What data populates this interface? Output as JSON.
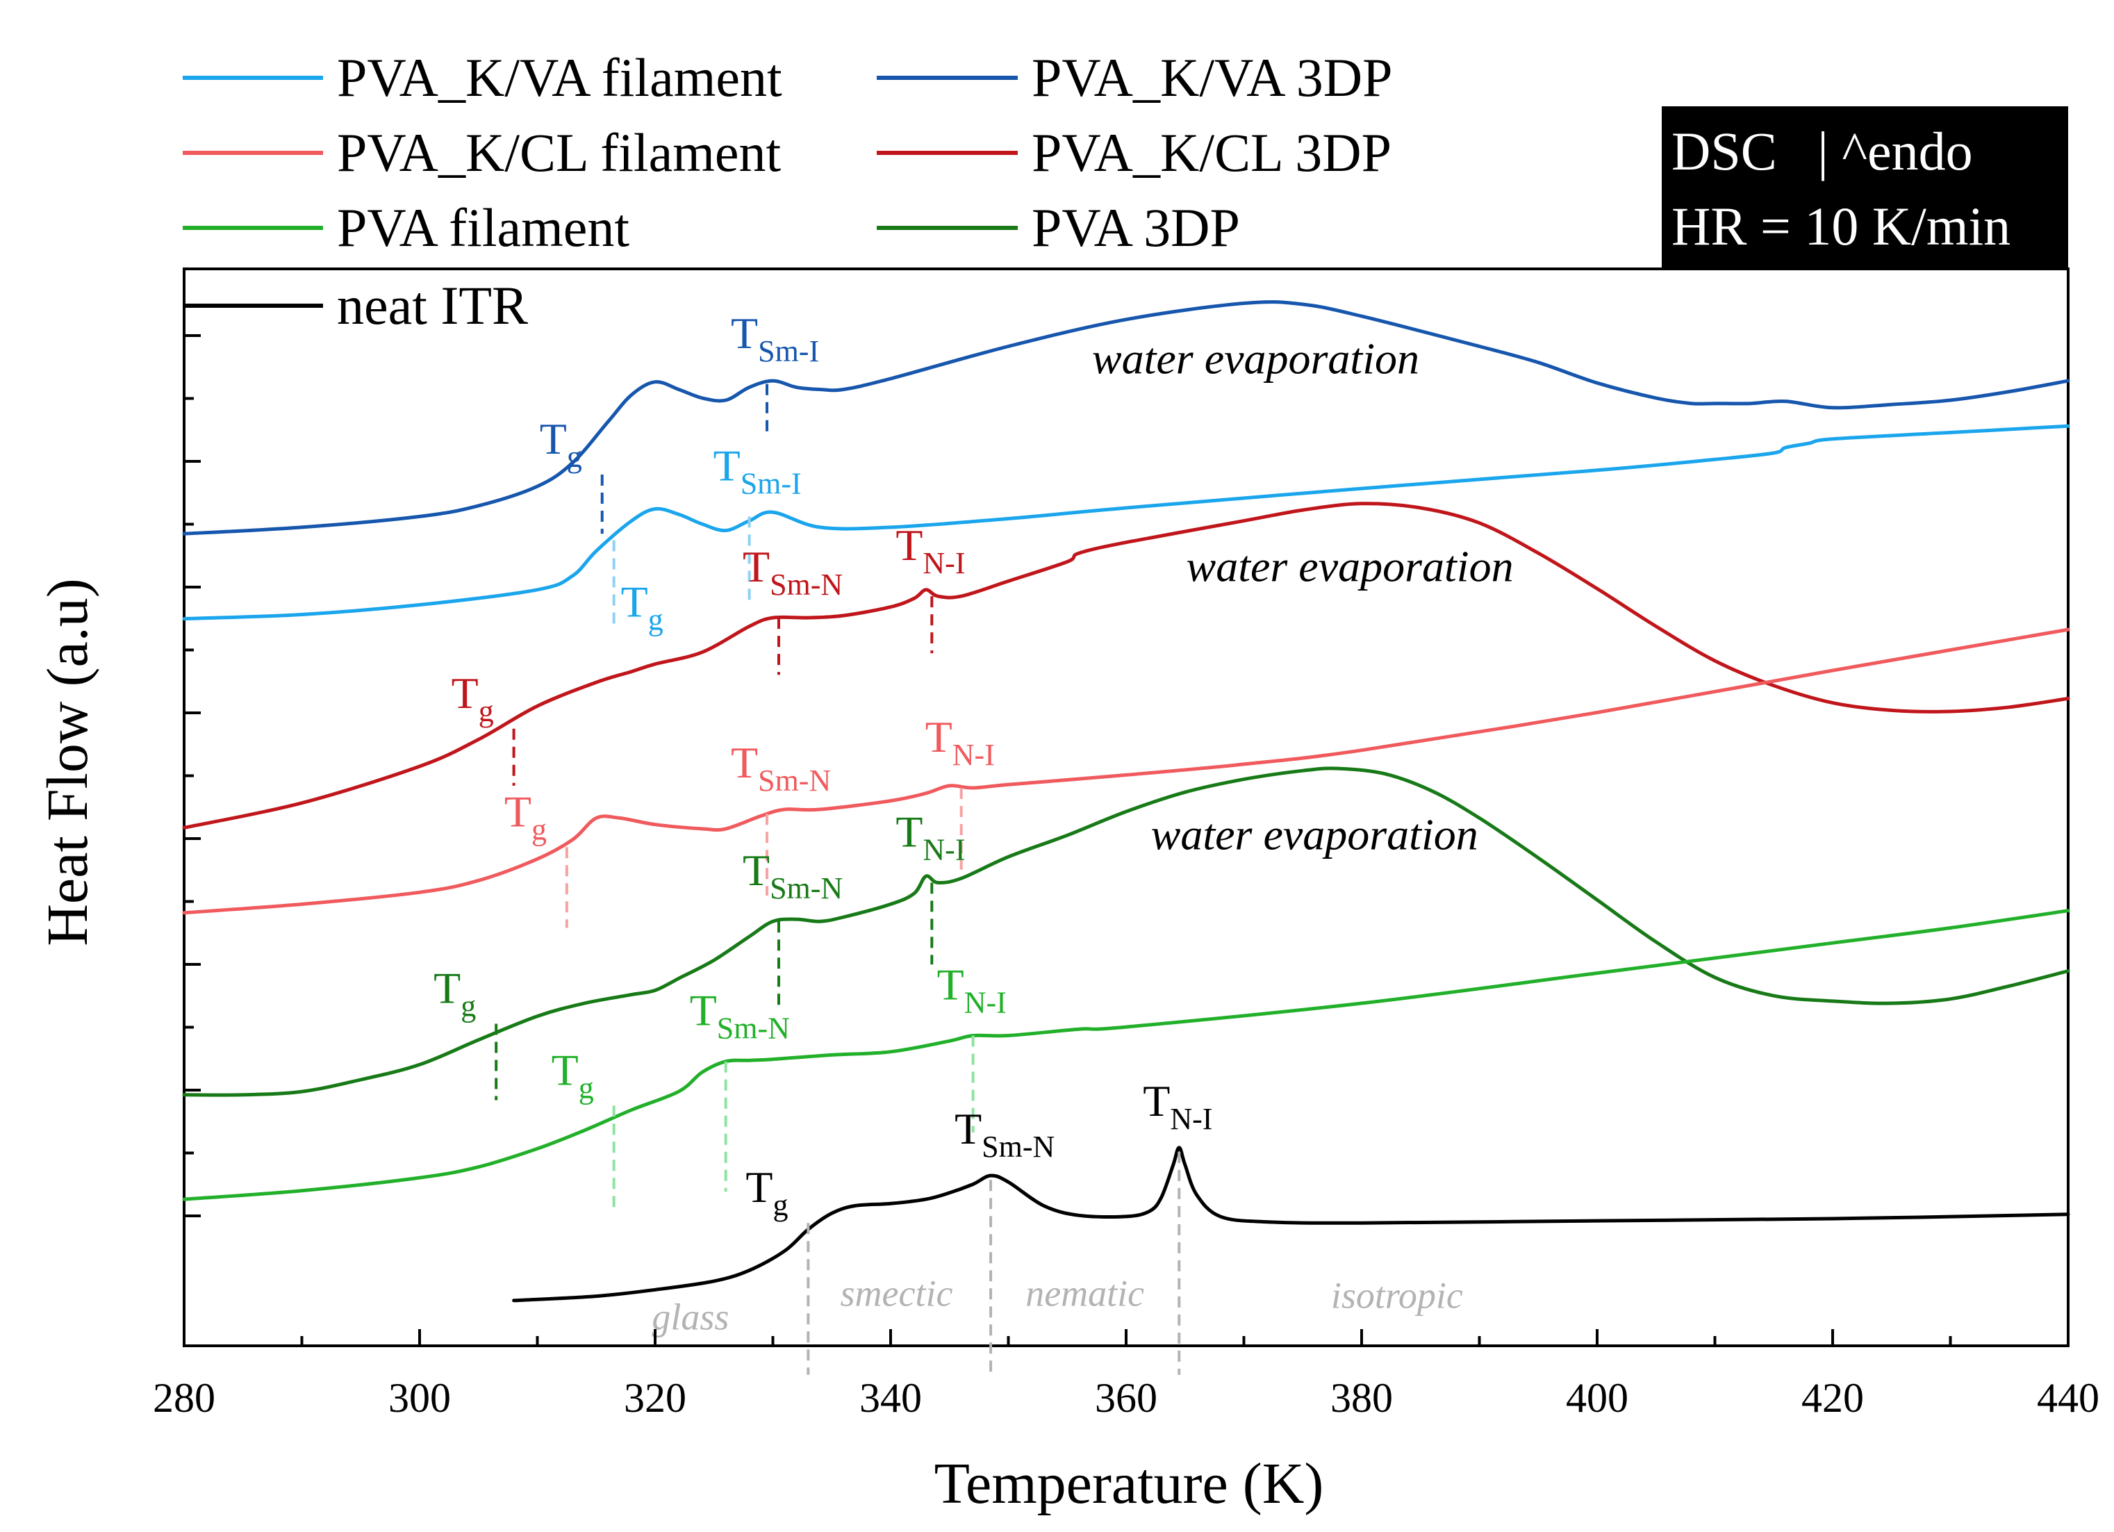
{
  "chart_data": {
    "type": "line",
    "title": "",
    "xlabel": "Temperature (K)",
    "ylabel": "Heat Flow (a.u)",
    "xlim": [
      280,
      440
    ],
    "ylim": [
      0,
      10
    ],
    "xticks": [
      280,
      300,
      320,
      340,
      360,
      380,
      400,
      420,
      440
    ],
    "grid": false,
    "legend_position": "top-left",
    "info_box": {
      "line1": "DSC   | ^endo",
      "line2": "HR = 10 K/min"
    },
    "colors": {
      "pva_kva_3dp": "#1656ad",
      "pva_kva_fil": "#1aa5ec",
      "pva_kcl_3dp": "#c0161b",
      "pva_kcl_fil": "#f05a5d",
      "pva_3dp": "#177a17",
      "pva_fil": "#22b02a",
      "itr": "#000000",
      "phase": "#b3b3b3"
    },
    "legend": [
      {
        "key": "pva_kva_fil",
        "label": "PVA_K/VA filament"
      },
      {
        "key": "pva_kva_3dp",
        "label": "PVA_K/VA 3DP"
      },
      {
        "key": "pva_kcl_fil",
        "label": "PVA_K/CL filament"
      },
      {
        "key": "pva_kcl_3dp",
        "label": "PVA_K/CL 3DP"
      },
      {
        "key": "pva_fil",
        "label": "PVA filament"
      },
      {
        "key": "pva_3dp",
        "label": "PVA 3DP"
      },
      {
        "key": "itr",
        "label": "neat ITR"
      }
    ],
    "series": [
      {
        "key": "pva_kva_3dp",
        "name": "PVA_K/VA 3DP",
        "x": [
          280,
          290,
          300,
          305,
          310,
          313,
          316,
          318,
          320,
          322,
          324,
          326,
          328,
          330,
          332,
          334,
          336,
          340,
          350,
          360,
          370,
          375,
          380,
          390,
          395,
          400,
          405,
          408,
          410,
          413,
          416,
          420,
          425,
          430,
          435,
          440
        ],
        "y": [
          6.96,
          7.02,
          7.12,
          7.22,
          7.4,
          7.62,
          8.0,
          8.25,
          8.37,
          8.3,
          8.22,
          8.2,
          8.32,
          8.38,
          8.32,
          8.3,
          8.3,
          8.4,
          8.7,
          8.95,
          9.1,
          9.09,
          8.98,
          8.7,
          8.55,
          8.36,
          8.22,
          8.17,
          8.17,
          8.17,
          8.19,
          8.13,
          8.16,
          8.2,
          8.28,
          8.38
        ]
      },
      {
        "key": "pva_kva_fil",
        "name": "PVA_K/VA filament",
        "x": [
          280,
          290,
          300,
          310,
          313,
          315,
          318,
          320,
          322,
          324,
          326,
          328,
          330,
          334,
          340,
          350,
          360,
          380,
          400,
          410,
          415,
          416,
          418,
          420,
          430,
          440
        ],
        "y": [
          6.17,
          6.21,
          6.3,
          6.44,
          6.57,
          6.8,
          7.08,
          7.19,
          7.14,
          7.05,
          6.99,
          7.08,
          7.16,
          7.02,
          7.02,
          7.1,
          7.2,
          7.38,
          7.55,
          7.65,
          7.71,
          7.76,
          7.8,
          7.84,
          7.9,
          7.96
        ]
      },
      {
        "key": "pva_kcl_3dp",
        "name": "PVA_K/CL 3DP",
        "x": [
          280,
          290,
          300,
          305,
          310,
          315,
          318,
          320,
          324,
          328,
          330,
          333,
          336,
          340,
          342,
          343,
          344,
          346,
          350,
          355,
          356,
          360,
          370,
          375,
          380,
          385,
          390,
          395,
          400,
          405,
          410,
          415,
          420,
          425,
          430,
          435,
          440
        ],
        "y": [
          4.23,
          4.46,
          4.8,
          5.05,
          5.36,
          5.58,
          5.68,
          5.75,
          5.86,
          6.1,
          6.18,
          6.18,
          6.2,
          6.28,
          6.36,
          6.44,
          6.38,
          6.38,
          6.52,
          6.7,
          6.78,
          6.88,
          7.08,
          7.18,
          7.24,
          7.2,
          7.06,
          6.78,
          6.45,
          6.1,
          5.78,
          5.55,
          5.39,
          5.32,
          5.31,
          5.35,
          5.43
        ]
      },
      {
        "key": "pva_kcl_fil",
        "name": "PVA_K/CL filament",
        "x": [
          280,
          290,
          300,
          305,
          310,
          313,
          315,
          317,
          320,
          324,
          326,
          329,
          331,
          334,
          340,
          343,
          345,
          347,
          350,
          360,
          370,
          380,
          400,
          420,
          440
        ],
        "y": [
          3.44,
          3.52,
          3.63,
          3.74,
          3.94,
          4.12,
          4.32,
          4.32,
          4.26,
          4.22,
          4.22,
          4.34,
          4.4,
          4.4,
          4.48,
          4.55,
          4.62,
          4.6,
          4.63,
          4.72,
          4.82,
          4.95,
          5.3,
          5.69,
          6.07
        ]
      },
      {
        "key": "pva_3dp",
        "name": "PVA 3DP",
        "x": [
          280,
          285,
          290,
          295,
          300,
          305,
          310,
          314,
          318,
          320,
          322,
          325,
          328,
          330,
          332,
          334,
          336,
          340,
          342,
          343,
          344,
          346,
          350,
          355,
          360,
          365,
          370,
          375,
          378,
          382,
          386,
          390,
          395,
          400,
          405,
          410,
          415,
          420,
          425,
          430,
          435,
          440
        ],
        "y": [
          1.75,
          1.75,
          1.78,
          1.89,
          2.03,
          2.26,
          2.48,
          2.6,
          2.68,
          2.72,
          2.83,
          3.0,
          3.22,
          3.36,
          3.38,
          3.36,
          3.4,
          3.52,
          3.62,
          3.78,
          3.72,
          3.76,
          3.96,
          4.16,
          4.38,
          4.56,
          4.68,
          4.76,
          4.78,
          4.73,
          4.57,
          4.32,
          3.95,
          3.56,
          3.17,
          2.84,
          2.67,
          2.62,
          2.6,
          2.64,
          2.76,
          2.9
        ]
      },
      {
        "key": "pva_fil",
        "name": "PVA filament",
        "x": [
          280,
          290,
          300,
          305,
          310,
          314,
          318,
          322,
          324,
          326,
          328,
          330,
          335,
          340,
          345,
          347,
          350,
          356,
          360,
          380,
          400,
          420,
          430,
          440
        ],
        "y": [
          0.78,
          0.86,
          0.98,
          1.08,
          1.25,
          1.42,
          1.61,
          1.78,
          1.96,
          2.06,
          2.07,
          2.08,
          2.12,
          2.15,
          2.25,
          2.3,
          2.3,
          2.36,
          2.38,
          2.6,
          2.88,
          3.16,
          3.3,
          3.46
        ]
      },
      {
        "key": "itr",
        "name": "neat ITR",
        "x": [
          308,
          315,
          320,
          325,
          328,
          331,
          333,
          335,
          337,
          340,
          343,
          345,
          347,
          348.5,
          350,
          353,
          356,
          360,
          362,
          363,
          364,
          364.5,
          365,
          366,
          368,
          372,
          380,
          400,
          420,
          440
        ],
        "y": [
          -0.16,
          -0.12,
          -0.06,
          0.02,
          0.12,
          0.3,
          0.5,
          0.65,
          0.72,
          0.74,
          0.78,
          0.84,
          0.92,
          1.0,
          0.94,
          0.72,
          0.63,
          0.62,
          0.67,
          0.8,
          1.1,
          1.26,
          1.1,
          0.82,
          0.62,
          0.57,
          0.56,
          0.58,
          0.6,
          0.64
        ]
      }
    ],
    "annotations": [
      {
        "series": "pva_kva_3dp",
        "kind": "tg",
        "x": 315.5,
        "y_top": 7.51,
        "y_bottom": 6.96,
        "main": "T",
        "sub": "g",
        "label_side": "above-left"
      },
      {
        "series": "pva_kva_3dp",
        "kind": "tsmi",
        "x": 329.5,
        "y_top": 8.35,
        "y_bottom": 7.85,
        "main": "T",
        "sub": "Sm-I",
        "label_side": "above"
      },
      {
        "series": "pva_kva_fil",
        "kind": "tg",
        "x": 316.5,
        "y_top": 6.9,
        "y_bottom": 6.1,
        "main": "T",
        "sub": "g",
        "label_side": "below-right"
      },
      {
        "series": "pva_kva_fil",
        "kind": "tsmi",
        "x": 328,
        "y_top": 7.12,
        "y_bottom": 6.3,
        "main": "T",
        "sub": "Sm-I",
        "label_side": "above"
      },
      {
        "series": "pva_kcl_3dp",
        "kind": "tg",
        "x": 308,
        "y_top": 5.15,
        "y_bottom": 4.62,
        "main": "T",
        "sub": "g",
        "label_side": "above-left"
      },
      {
        "series": "pva_kcl_3dp",
        "kind": "tsmn",
        "x": 330.5,
        "y_top": 6.18,
        "y_bottom": 5.65,
        "main": "T",
        "sub": "Sm-N",
        "label_side": "above"
      },
      {
        "series": "pva_kcl_3dp",
        "kind": "tni",
        "x": 343.5,
        "y_top": 6.38,
        "y_bottom": 5.85,
        "main": "T",
        "sub": "N-I",
        "label_side": "above"
      },
      {
        "series": "pva_kcl_fil",
        "kind": "tg",
        "x": 312.5,
        "y_top": 4.05,
        "y_bottom": 3.3,
        "main": "T",
        "sub": "g",
        "label_side": "above-left"
      },
      {
        "series": "pva_kcl_fil",
        "kind": "tsmn",
        "x": 329.5,
        "y_top": 4.36,
        "y_bottom": 3.6,
        "main": "T",
        "sub": "Sm-N",
        "label_side": "above"
      },
      {
        "series": "pva_kcl_fil",
        "kind": "tni",
        "x": 346,
        "y_top": 4.6,
        "y_bottom": 3.84,
        "main": "T",
        "sub": "N-I",
        "label_side": "above"
      },
      {
        "series": "pva_3dp",
        "kind": "tg",
        "x": 306.5,
        "y_top": 2.41,
        "y_bottom": 1.7,
        "main": "T",
        "sub": "g",
        "label_side": "above-left"
      },
      {
        "series": "pva_3dp",
        "kind": "tsmn",
        "x": 330.5,
        "y_top": 3.36,
        "y_bottom": 2.58,
        "main": "T",
        "sub": "Sm-N",
        "label_side": "above"
      },
      {
        "series": "pva_3dp",
        "kind": "tni",
        "x": 343.5,
        "y_top": 3.72,
        "y_bottom": 2.96,
        "main": "T",
        "sub": "N-I",
        "label_side": "above"
      },
      {
        "series": "pva_fil",
        "kind": "tg",
        "x": 316.5,
        "y_top": 1.65,
        "y_bottom": 0.65,
        "main": "T",
        "sub": "g",
        "label_side": "above-left"
      },
      {
        "series": "pva_fil",
        "kind": "tsmn",
        "x": 326,
        "y_top": 2.06,
        "y_bottom": 0.85,
        "main": "T",
        "sub": "Sm-N",
        "label_side": "above"
      },
      {
        "series": "pva_fil",
        "kind": "tni",
        "x": 347,
        "y_top": 2.3,
        "y_bottom": 1.4,
        "main": "T",
        "sub": "N-I",
        "label_side": "above"
      },
      {
        "series": "itr",
        "kind": "tg",
        "x": 333,
        "y_top": 0.56,
        "y_bottom": -0.85,
        "main": "T",
        "sub": "g",
        "label_side": "above-left"
      },
      {
        "series": "itr",
        "kind": "tsmn",
        "x": 348.5,
        "y_top": 0.96,
        "y_bottom": -0.85,
        "main": "T",
        "sub": "Sm-N",
        "label_side": "above"
      },
      {
        "series": "itr",
        "kind": "tni",
        "x": 364.5,
        "y_top": 1.22,
        "y_bottom": -0.85,
        "main": "T",
        "sub": "N-I",
        "label_side": "above"
      }
    ],
    "water_labels": [
      {
        "series": "pva_kva_3dp",
        "text": "water evaporation",
        "x": 371,
        "y": 8.45
      },
      {
        "series": "pva_kcl_3dp",
        "text": "water evaporation",
        "x": 379,
        "y": 6.52
      },
      {
        "series": "pva_3dp",
        "text": "water evaporation",
        "x": 376,
        "y": 4.03
      }
    ],
    "phase_labels": [
      {
        "text": "glass",
        "x": 323,
        "y": -0.43
      },
      {
        "text": "smectic",
        "x": 340.5,
        "y": -0.21
      },
      {
        "text": "nematic",
        "x": 356.5,
        "y": -0.21
      },
      {
        "text": "isotropic",
        "x": 383,
        "y": -0.23
      }
    ]
  }
}
